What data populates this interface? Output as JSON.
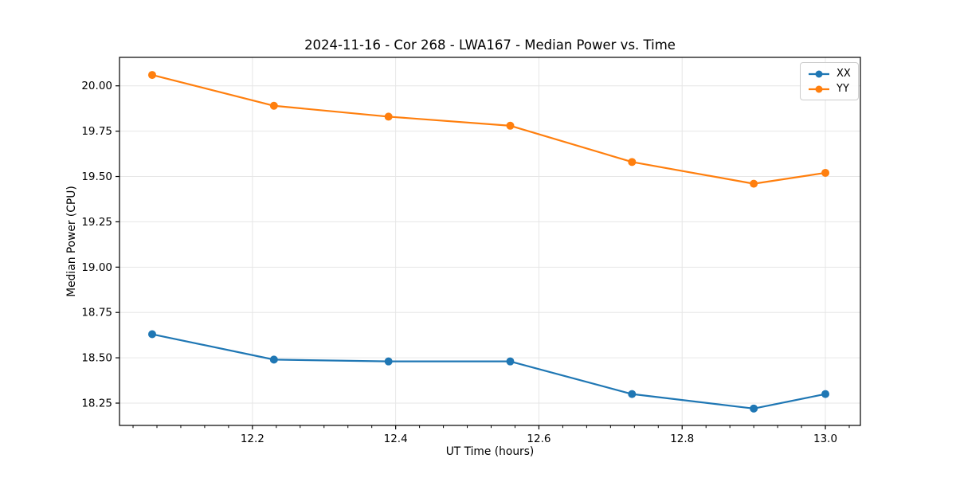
{
  "chart_data": {
    "type": "line",
    "title": "2024-11-16 - Cor 268 - LWA167 - Median Power vs. Time",
    "xlabel": "UT Time (hours)",
    "ylabel": "Median Power (CPU)",
    "x": [
      12.06,
      12.23,
      12.39,
      12.56,
      12.73,
      12.9,
      13.0
    ],
    "series": [
      {
        "name": "XX",
        "color": "#1f77b4",
        "values": [
          18.63,
          18.49,
          18.48,
          18.48,
          18.3,
          18.22,
          18.3
        ]
      },
      {
        "name": "YY",
        "color": "#ff7f0e",
        "values": [
          20.06,
          19.89,
          19.83,
          19.78,
          19.58,
          19.46,
          19.52
        ]
      }
    ],
    "xlim": [
      12.0144,
      13.0489
    ],
    "ylim": [
      18.127,
      20.157
    ],
    "xticks": [
      12.2,
      12.4,
      12.6,
      12.8,
      13.0
    ],
    "yticks": [
      18.25,
      18.5,
      18.75,
      19.0,
      19.25,
      19.5,
      19.75,
      20.0
    ],
    "x_minor_divisions": 6,
    "grid": true,
    "grid_color": "#e6e6e6",
    "axis_color": "#000000",
    "legend_position": "upper right",
    "marker": "circle"
  }
}
